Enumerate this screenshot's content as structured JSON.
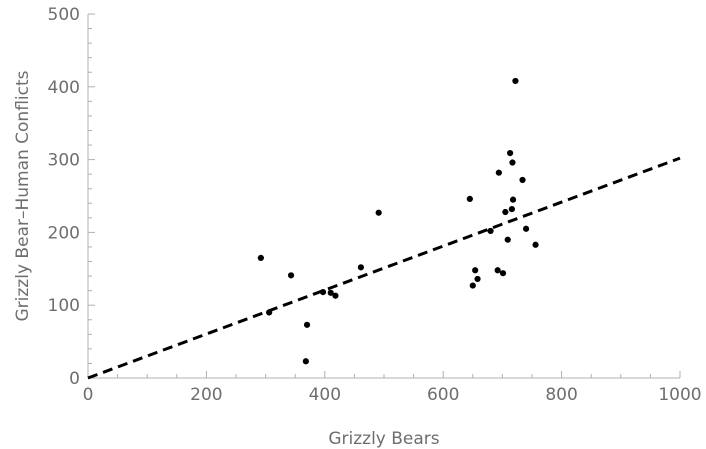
{
  "chart_data": {
    "type": "scatter",
    "xlabel": "Grizzly Bears",
    "ylabel": "Grizzly Bear–Human Conflicts",
    "xlim": [
      0,
      1000
    ],
    "ylim": [
      0,
      500
    ],
    "x_ticks": [
      0,
      200,
      400,
      600,
      800,
      1000
    ],
    "y_ticks": [
      0,
      100,
      200,
      300,
      400,
      500
    ],
    "grid": false,
    "series": [
      {
        "points": [
          [
            292,
            165
          ],
          [
            306,
            90
          ],
          [
            343,
            141
          ],
          [
            368,
            23
          ],
          [
            370,
            73
          ],
          [
            397,
            118
          ],
          [
            410,
            117
          ],
          [
            418,
            113
          ],
          [
            461,
            152
          ],
          [
            491,
            227
          ],
          [
            645,
            246
          ],
          [
            650,
            127
          ],
          [
            654,
            148
          ],
          [
            658,
            136
          ],
          [
            680,
            202
          ],
          [
            692,
            148
          ],
          [
            694,
            282
          ],
          [
            701,
            144
          ],
          [
            705,
            228
          ],
          [
            709,
            190
          ],
          [
            713,
            309
          ],
          [
            716,
            232
          ],
          [
            717,
            296
          ],
          [
            718,
            245
          ],
          [
            722,
            408
          ],
          [
            734,
            272
          ],
          [
            740,
            205
          ],
          [
            756,
            183
          ]
        ]
      }
    ],
    "fit_line": {
      "style": "dashed",
      "x": [
        0,
        1000
      ],
      "y": [
        0,
        302
      ]
    }
  }
}
